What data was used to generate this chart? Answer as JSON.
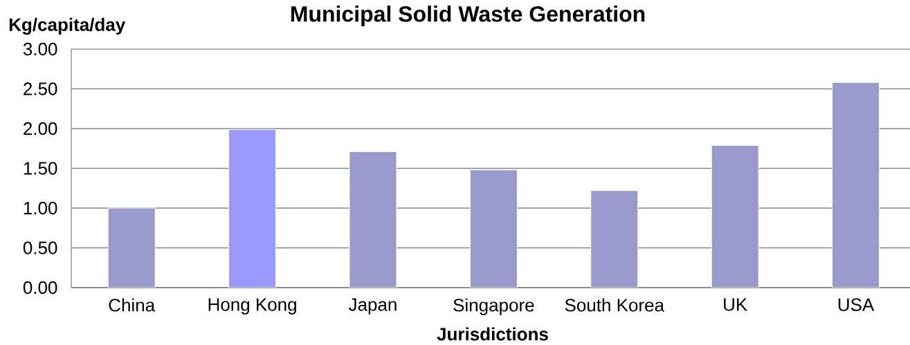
{
  "chart_data": {
    "type": "bar",
    "title": "Municipal Solid Waste Generation",
    "xlabel": "Jurisdictions",
    "ylabel": "Kg/capita/day",
    "categories": [
      "China",
      "Hong Kong",
      "Japan",
      "Singapore",
      "South Korea",
      "UK",
      "USA"
    ],
    "values": [
      1.0,
      1.99,
      1.71,
      1.48,
      1.22,
      1.79,
      2.58
    ],
    "colors": [
      "#9999cc",
      "#9999ff",
      "#9999cc",
      "#9999cc",
      "#9999cc",
      "#9999cc",
      "#9999cc"
    ],
    "ylim": [
      0,
      3
    ],
    "yticks": [
      {
        "value": 0,
        "label": "0.00"
      },
      {
        "value": 0.5,
        "label": "0.50"
      },
      {
        "value": 1,
        "label": "1.00"
      },
      {
        "value": 1.5,
        "label": "1.50"
      },
      {
        "value": 2,
        "label": "2.00"
      },
      {
        "value": 2.5,
        "label": "2.50"
      },
      {
        "value": 3,
        "label": "3.00"
      }
    ],
    "grid": "y"
  }
}
